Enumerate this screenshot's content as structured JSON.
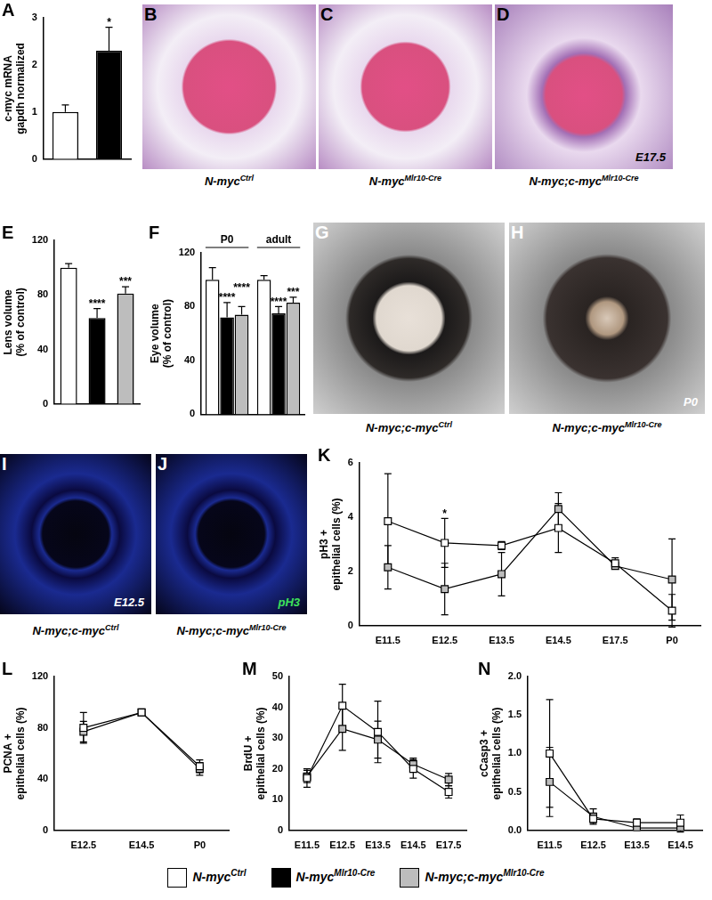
{
  "figure_legend": [
    {
      "name": "N-myc",
      "sup": "Ctrl",
      "color": "#ffffff"
    },
    {
      "name": "N-myc",
      "sup": "Mlr10-Cre",
      "color": "#000000"
    },
    {
      "name": "N-myc;c-myc",
      "sup": "Mlr10-Cre",
      "color": "#bdbdbd"
    }
  ],
  "images": [
    {
      "panel": "B",
      "caption": {
        "name": "N-myc",
        "sup": "Ctrl"
      }
    },
    {
      "panel": "C",
      "caption": {
        "name": "N-myc",
        "sup": "Mlr10-Cre"
      }
    },
    {
      "panel": "D",
      "caption": {
        "name": "N-myc;c-myc",
        "sup": "Mlr10-Cre"
      },
      "inset": "E17.5"
    },
    {
      "panel": "G",
      "caption": {
        "name": "N-myc;c-myc",
        "sup": "Ctrl"
      }
    },
    {
      "panel": "H",
      "caption": {
        "name": "N-myc;c-myc",
        "sup": "Mlr10-Cre"
      },
      "inset": "P0"
    },
    {
      "panel": "I",
      "caption": {
        "name": "N-myc;c-myc",
        "sup": "Ctrl"
      },
      "inset": "E12.5"
    },
    {
      "panel": "J",
      "caption": {
        "name": "N-myc;c-myc",
        "sup": "Mlr10-Cre"
      },
      "inset": "pH3"
    }
  ],
  "chart_data": [
    {
      "panel": "A",
      "type": "bar",
      "categories": [
        null,
        null
      ],
      "values": [
        1.0,
        2.3
      ],
      "errors": [
        0.15,
        0.5
      ],
      "colors": [
        "#ffffff",
        "#000000"
      ],
      "ylabel": [
        "c-myc mRNA",
        "gapdh normalized"
      ],
      "ylim": [
        0,
        3
      ],
      "yticks": [
        0,
        1,
        2,
        3
      ],
      "grid": false,
      "annotations": [
        {
          "text": "*",
          "category": 1
        }
      ]
    },
    {
      "panel": "E",
      "type": "bar",
      "categories": [
        null,
        null,
        null
      ],
      "values": [
        100,
        63,
        81
      ],
      "errors": [
        3,
        7,
        5
      ],
      "colors": [
        "#ffffff",
        "#000000",
        "#bdbdbd"
      ],
      "ylabel": [
        "Lens volume",
        "(% of control)"
      ],
      "ylim": [
        0,
        120
      ],
      "yticks": [
        0,
        40,
        80,
        120
      ],
      "grid": false,
      "annotations": [
        {
          "text": "****",
          "category": 1
        },
        {
          "text": "***",
          "category": 2
        }
      ]
    },
    {
      "panel": "F",
      "type": "bar",
      "categories": [
        "P0",
        "adult"
      ],
      "series": [
        {
          "color": "#ffffff",
          "values": [
            100,
            100
          ],
          "errors": [
            9,
            3
          ]
        },
        {
          "color": "#000000",
          "values": [
            72,
            75
          ],
          "errors": [
            11,
            5
          ]
        },
        {
          "color": "#bdbdbd",
          "values": [
            74,
            83
          ],
          "errors": [
            6,
            4
          ]
        }
      ],
      "ylabel": [
        "Eye volume",
        "(% of control)"
      ],
      "ylim": [
        0,
        120
      ],
      "yticks": [
        0,
        40,
        80,
        120
      ],
      "grid": false,
      "annotations": [
        {
          "text": "****",
          "series": 1,
          "category": 0
        },
        {
          "text": "****",
          "series": 2,
          "category": 0
        },
        {
          "text": "****",
          "series": 1,
          "category": 1
        },
        {
          "text": "***",
          "series": 2,
          "category": 1
        }
      ]
    },
    {
      "panel": "K",
      "type": "line",
      "categories": [
        "E11.5",
        "E12.5",
        "E13.5",
        "E14.5",
        "E17.5",
        "P0"
      ],
      "series": [
        {
          "color": "#ffffff",
          "marker": "square",
          "values": [
            3.85,
            3.05,
            2.95,
            3.6,
            2.3,
            0.55
          ],
          "errors": [
            1.75,
            0.9,
            0.15,
            0.9,
            0.2,
            0.6
          ]
        },
        {
          "color": "#bdbdbd",
          "marker": "square",
          "values": [
            2.15,
            1.35,
            1.9,
            4.3,
            2.2,
            1.7
          ],
          "errors": [
            0.8,
            0.95,
            0.8,
            0.6,
            0.1,
            1.5
          ]
        }
      ],
      "ylabel": [
        "pH3 +",
        "epithelial cells (%)"
      ],
      "ylim": [
        0,
        6
      ],
      "yticks": [
        0,
        2,
        4,
        6
      ],
      "grid": false,
      "annotations": [
        {
          "text": "*",
          "series": 0,
          "category": 1
        }
      ]
    },
    {
      "panel": "L",
      "type": "line",
      "categories": [
        "E12.5",
        "E14.5",
        "P0"
      ],
      "series": [
        {
          "color": "#ffffff",
          "marker": "square",
          "values": [
            80,
            92,
            50
          ],
          "errors": [
            12,
            2,
            5
          ]
        },
        {
          "color": "#bdbdbd",
          "marker": "square",
          "values": [
            77,
            92,
            48
          ],
          "errors": [
            8,
            2,
            5
          ]
        }
      ],
      "ylabel": [
        "PCNA +",
        "epithelial cells (%)"
      ],
      "ylim": [
        0,
        120
      ],
      "yticks": [
        0,
        40,
        80,
        120
      ],
      "grid": false
    },
    {
      "panel": "M",
      "type": "line",
      "categories": [
        "E11.5",
        "E12.5",
        "E13.5",
        "E14.5",
        "E17.5"
      ],
      "series": [
        {
          "color": "#ffffff",
          "marker": "square",
          "values": [
            17,
            40.5,
            32,
            20,
            12.5
          ],
          "errors": [
            3,
            7,
            10,
            3,
            2
          ]
        },
        {
          "color": "#bdbdbd",
          "marker": "square",
          "values": [
            17.5,
            33,
            29.5,
            21.5,
            16.5
          ],
          "errors": [
            2,
            7,
            6,
            2,
            2
          ]
        }
      ],
      "ylabel": [
        "BrdU +",
        "epithelial cells (%)"
      ],
      "ylim": [
        0,
        50
      ],
      "yticks": [
        0,
        10,
        20,
        30,
        40,
        50
      ],
      "grid": false
    },
    {
      "panel": "N",
      "type": "line",
      "categories": [
        "E11.5",
        "E12.5",
        "E13.5",
        "E14.5"
      ],
      "series": [
        {
          "color": "#ffffff",
          "marker": "square",
          "values": [
            1.0,
            0.15,
            0.1,
            0.1
          ],
          "errors": [
            0.7,
            0.05,
            0.05,
            0.1
          ]
        },
        {
          "color": "#bdbdbd",
          "marker": "square",
          "values": [
            0.63,
            0.18,
            0.03,
            0.03
          ],
          "errors": [
            0.45,
            0.1,
            0.03,
            0.05
          ]
        }
      ],
      "ylabel": [
        "cCasp3 +",
        "epithelial cells (%)"
      ],
      "ylim": [
        0,
        2
      ],
      "yticks": [
        {
          "value": 0,
          "label": "0.0"
        },
        0.5,
        {
          "value": 1,
          "label": "1.0"
        },
        1.5,
        {
          "value": 2,
          "label": "2.0"
        }
      ],
      "grid": false
    }
  ]
}
